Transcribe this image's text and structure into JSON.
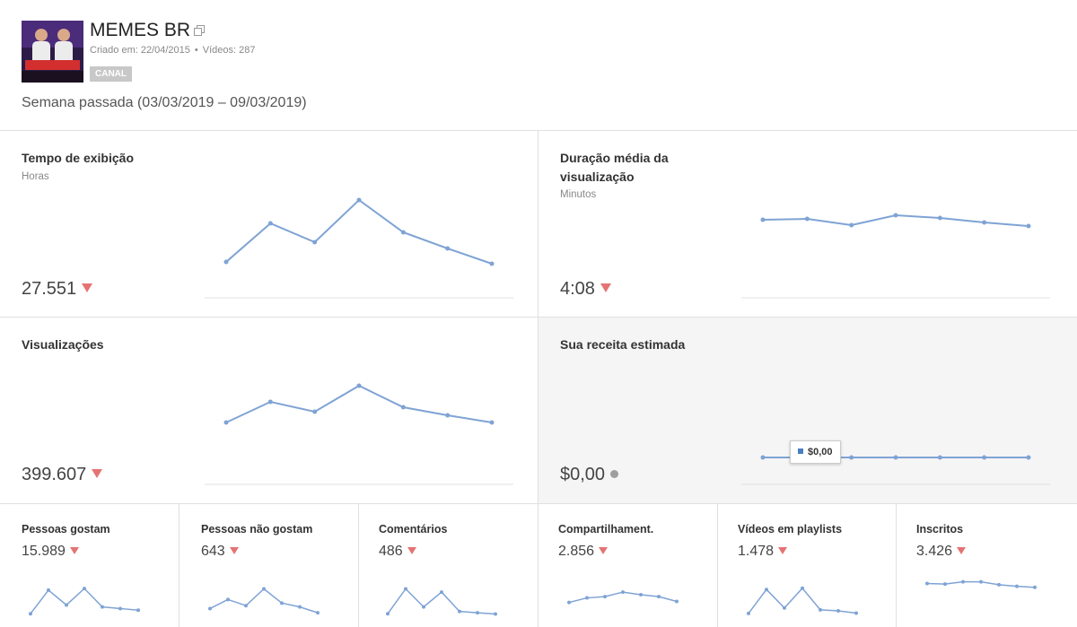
{
  "channel": {
    "name": "MEMES BR",
    "created": "Criado em: 22/04/2015",
    "videos": "Vídeos: 287",
    "badge": "CANAL",
    "period": "Semana passada (03/03/2019 – 09/03/2019)"
  },
  "colors": {
    "line": "#7fa3d4",
    "decrease": "#e57373",
    "neutral": "#9e9e9e"
  },
  "chart_data": [
    {
      "type": "line",
      "title": "Tempo de exibição",
      "unit": "Horas",
      "value": "27.551",
      "trend": "down",
      "values": [
        1.0,
        5.3,
        3.2,
        7.9,
        4.3,
        2.5,
        0.8
      ],
      "ylim": [
        0,
        10
      ]
    },
    {
      "type": "line",
      "title": "Duração média da visualização",
      "unit": "Minutos",
      "value": "4:08",
      "trend": "down",
      "values": [
        5.7,
        5.8,
        5.1,
        6.2,
        5.9,
        5.4,
        5.0
      ],
      "ylim": [
        0,
        10
      ]
    },
    {
      "type": "line",
      "title": "Visualizações",
      "unit": "",
      "value": "399.607",
      "trend": "down",
      "values": [
        3.9,
        6.2,
        5.1,
        8.0,
        5.6,
        4.7,
        3.9
      ],
      "ylim": [
        0,
        10
      ]
    },
    {
      "type": "line",
      "title": "Sua receita estimada",
      "unit": "",
      "value": "$0,00",
      "trend": "neutral",
      "values": [
        0,
        0,
        0,
        0,
        0,
        0,
        0
      ],
      "ylim": [
        0,
        10
      ],
      "tooltip": "$0,00"
    },
    {
      "type": "line",
      "title": "Pessoas gostam",
      "value": "15.989",
      "trend": "down",
      "values": [
        0.5,
        7.8,
        3.2,
        8.3,
        2.6,
        2.1,
        1.6
      ],
      "ylim": [
        0,
        10
      ]
    },
    {
      "type": "line",
      "title": "Pessoas não gostam",
      "value": "643",
      "trend": "down",
      "values": [
        2.1,
        4.9,
        3.0,
        8.2,
        3.8,
        2.6,
        0.8
      ],
      "ylim": [
        0,
        10
      ]
    },
    {
      "type": "line",
      "title": "Comentários",
      "value": "486",
      "trend": "down",
      "values": [
        0.5,
        8.2,
        2.6,
        7.2,
        1.2,
        0.8,
        0.4
      ],
      "ylim": [
        0,
        10
      ]
    },
    {
      "type": "line",
      "title": "Compartilhament.",
      "value": "2.856",
      "trend": "down",
      "values": [
        4.0,
        5.4,
        5.8,
        7.2,
        6.4,
        5.8,
        4.3
      ],
      "ylim": [
        0,
        10
      ]
    },
    {
      "type": "line",
      "title": "Vídeos em playlists",
      "value": "1.478",
      "trend": "down",
      "values": [
        0.6,
        8.0,
        2.3,
        8.4,
        1.7,
        1.4,
        0.7
      ],
      "ylim": [
        0,
        10
      ]
    },
    {
      "type": "line",
      "title": "Inscritos",
      "value": "3.426",
      "trend": "down",
      "values": [
        7.1,
        6.9,
        7.6,
        7.6,
        6.7,
        6.2,
        5.9
      ],
      "ylim": [
        0,
        10
      ]
    }
  ]
}
